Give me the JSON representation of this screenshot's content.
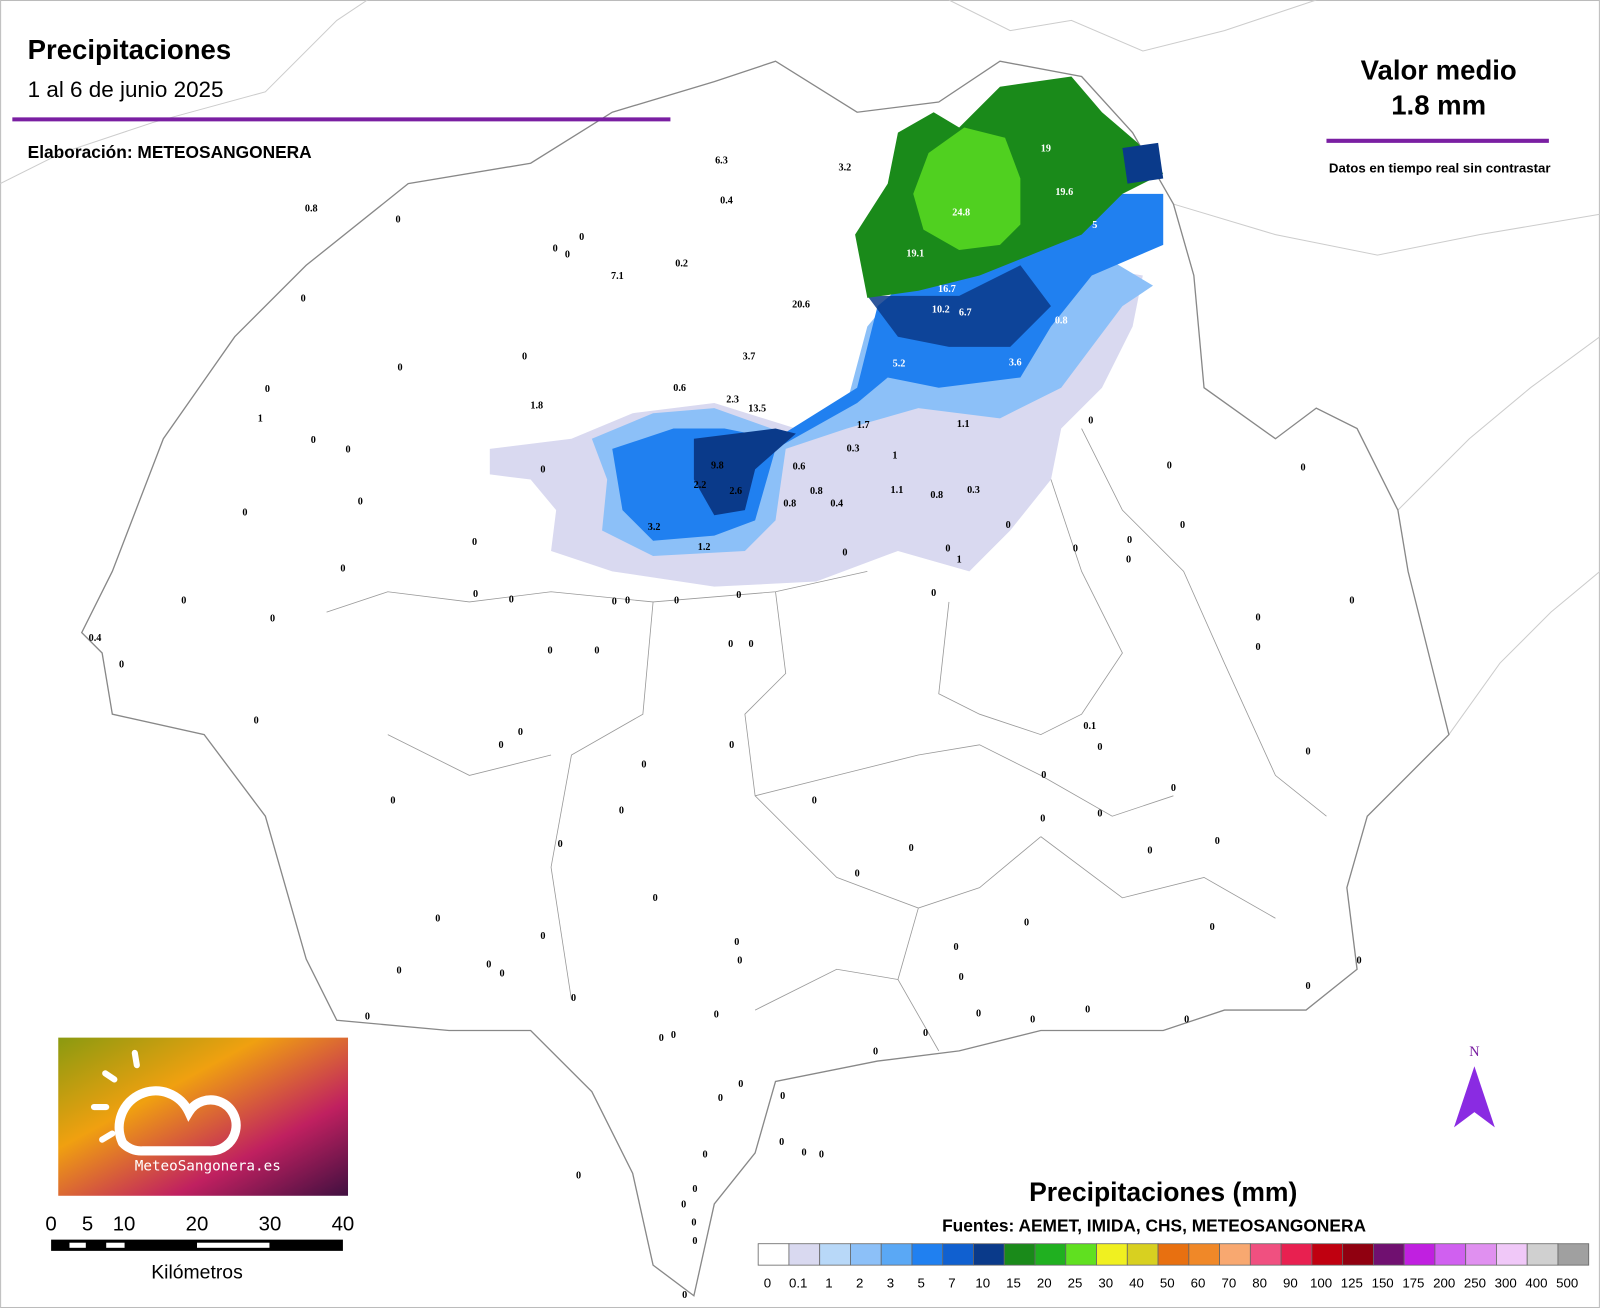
{
  "header": {
    "title": "Precipitaciones",
    "subtitle": "1 al 6 de junio 2025",
    "author": "Elaboración: METEOSANGONERA"
  },
  "summary": {
    "label": "Valor medio",
    "value": "1.8 mm",
    "note": "Datos en tiempo real sin contrastar"
  },
  "stations": [
    6.3,
    3.2,
    0.4,
    0.8,
    0,
    0,
    0,
    0,
    7.1,
    0.2,
    0,
    20.6,
    19,
    19.6,
    24.8,
    5,
    19.1,
    16.7,
    10.2,
    6.7,
    0.8,
    0,
    5.2,
    3.6,
    3.7,
    0,
    0,
    0,
    1,
    0.6,
    2.3,
    13.5,
    1.8,
    1.7,
    1.1,
    0,
    0.3,
    1,
    0,
    0,
    9.8,
    0.6,
    0,
    0,
    0,
    2.2,
    2.6,
    1.1,
    0.8,
    0.8,
    0.3,
    0.8,
    0.4,
    0,
    0,
    0,
    0,
    3.2,
    0,
    0,
    1.2,
    0,
    0,
    1,
    0,
    0,
    0,
    0,
    0,
    0,
    0,
    0,
    0,
    0,
    0,
    0,
    0,
    0,
    0.4,
    0,
    0,
    0,
    0,
    0,
    0,
    0,
    0,
    0,
    0,
    0.1,
    0,
    0,
    0,
    0,
    0,
    0,
    0,
    0,
    0,
    0,
    0,
    0,
    0,
    0,
    0,
    0,
    0,
    0,
    0,
    0,
    0,
    0,
    0,
    0,
    0,
    0,
    0,
    0,
    0,
    0,
    0,
    0,
    0,
    0,
    0,
    0,
    0,
    0,
    0,
    0,
    0,
    0,
    0,
    0,
    0,
    0,
    0,
    0,
    0,
    0,
    0,
    0,
    0
  ],
  "logo": "MeteoSangonera.es",
  "scale_bar": {
    "labels": [
      0,
      5,
      10,
      20,
      30,
      40
    ],
    "unit": "Kilómetros"
  },
  "north": "N",
  "legend": {
    "title": "Precipitaciones (mm)",
    "sources": "Fuentes: AEMET, IMIDA, CHS, METEOSANGONERA",
    "labels": [
      0,
      0.1,
      1,
      2,
      3,
      5,
      7,
      10,
      15,
      20,
      25,
      30,
      40,
      50,
      60,
      70,
      80,
      90,
      100,
      125,
      150,
      175,
      200,
      250,
      300,
      400,
      500
    ],
    "colors": [
      "#ffffff",
      "#d9d9f0",
      "#b8d8f8",
      "#8cc0f8",
      "#5aa8f5",
      "#2080f0",
      "#1060d0",
      "#0a3a8a",
      "#1a8a1a",
      "#20b020",
      "#60e020",
      "#f0f020",
      "#d8d020",
      "#e87010",
      "#f08828",
      "#f8a870",
      "#f05080",
      "#e82050",
      "#c00010",
      "#900010",
      "#701070",
      "#c020e0",
      "#d060f0",
      "#e090f0",
      "#f0c8f8",
      "#d0d0d0",
      "#a0a0a0"
    ]
  }
}
